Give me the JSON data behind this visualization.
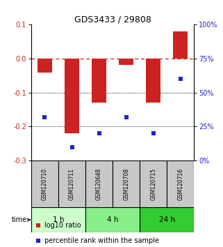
{
  "title": "GDS3433 / 29808",
  "categories": [
    "GSM120710",
    "GSM120711",
    "GSM120648",
    "GSM120708",
    "GSM120715",
    "GSM120716"
  ],
  "bar_values": [
    -0.04,
    -0.22,
    -0.13,
    -0.018,
    -0.13,
    0.08
  ],
  "percentile_values": [
    32,
    10,
    20,
    32,
    20,
    60
  ],
  "bar_color": "#cc2222",
  "dot_color": "#2222cc",
  "ylim_left": [
    -0.3,
    0.1
  ],
  "ylim_right": [
    0,
    100
  ],
  "yticks_left": [
    0.1,
    0,
    -0.1,
    -0.2,
    -0.3
  ],
  "yticks_right": [
    100,
    75,
    50,
    25,
    0
  ],
  "groups": [
    {
      "label": "1 h",
      "indices": [
        0,
        1
      ],
      "color": "#ccffcc"
    },
    {
      "label": "4 h",
      "indices": [
        2,
        3
      ],
      "color": "#88ee88"
    },
    {
      "label": "24 h",
      "indices": [
        4,
        5
      ],
      "color": "#33cc33"
    }
  ],
  "time_label": "time",
  "legend_bar_label": "log10 ratio",
  "legend_dot_label": "percentile rank within the sample",
  "bar_width": 0.55,
  "sample_box_color": "#c8c8c8",
  "bg_color": "#ffffff"
}
